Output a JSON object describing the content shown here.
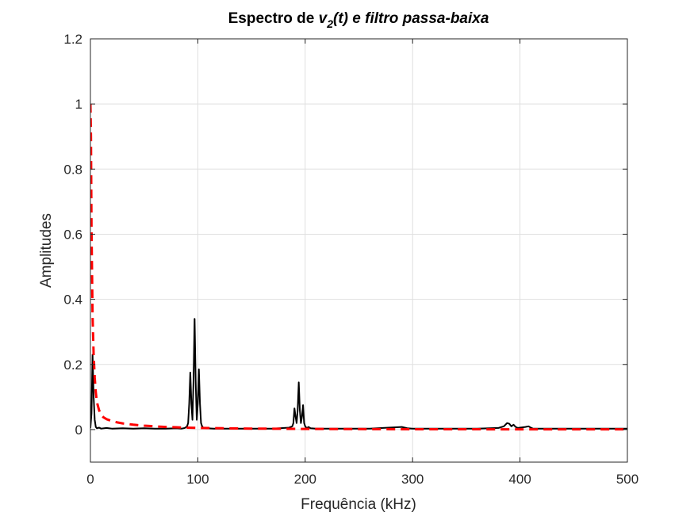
{
  "chart_data": {
    "type": "line",
    "title": {
      "prefix": "Espectro de ",
      "var": "v",
      "sub": "2",
      "rest": "(t) e filtro passa-baixa"
    },
    "xlabel": "Frequência (kHz)",
    "ylabel": "Amplitudes",
    "xlim": [
      0,
      500
    ],
    "ylim": [
      -0.1,
      1.2
    ],
    "xticks": [
      0,
      100,
      200,
      300,
      400,
      500
    ],
    "yticks": [
      0,
      0.2,
      0.4,
      0.6,
      0.8,
      1,
      1.2
    ],
    "ytick_labels": [
      "0",
      "0.2",
      "0.4",
      "0.6",
      "0.8",
      "1",
      "1.2"
    ],
    "grid": true,
    "series": [
      {
        "color": "#000000",
        "style": "solid",
        "x": [
          0,
          1,
          2,
          3,
          4,
          5,
          6,
          8,
          10,
          15,
          20,
          30,
          40,
          50,
          60,
          70,
          80,
          85,
          88,
          90,
          91,
          92,
          93,
          94,
          95,
          96,
          97,
          98,
          99,
          100,
          101,
          102,
          103,
          104,
          105,
          108,
          115,
          130,
          150,
          170,
          185,
          188,
          189,
          190,
          191,
          192,
          193,
          194,
          195,
          196,
          197,
          198,
          199,
          200,
          201,
          202,
          203,
          205,
          210,
          230,
          260,
          290,
          295,
          300,
          330,
          360,
          380,
          385,
          388,
          390,
          392,
          394,
          396,
          398,
          400,
          405,
          408,
          410,
          412,
          415,
          420,
          450,
          480,
          500
        ],
        "y": [
          0.005,
          0.05,
          0.23,
          0.1,
          0.03,
          0.008,
          0.004,
          0.006,
          0.003,
          0.005,
          0.003,
          0.004,
          0.003,
          0.004,
          0.003,
          0.003,
          0.004,
          0.003,
          0.005,
          0.01,
          0.02,
          0.08,
          0.175,
          0.08,
          0.03,
          0.15,
          0.34,
          0.15,
          0.03,
          0.08,
          0.185,
          0.08,
          0.02,
          0.01,
          0.006,
          0.004,
          0.003,
          0.003,
          0.003,
          0.003,
          0.006,
          0.01,
          0.02,
          0.065,
          0.04,
          0.02,
          0.06,
          0.145,
          0.06,
          0.02,
          0.04,
          0.075,
          0.02,
          0.01,
          0.006,
          0.005,
          0.008,
          0.004,
          0.003,
          0.003,
          0.003,
          0.008,
          0.004,
          0.003,
          0.003,
          0.003,
          0.005,
          0.01,
          0.02,
          0.018,
          0.01,
          0.015,
          0.008,
          0.005,
          0.006,
          0.008,
          0.01,
          0.006,
          0.003,
          0.003,
          0.003,
          0.003,
          0.003,
          0.003
        ]
      },
      {
        "color": "#ff0000",
        "style": "dashed",
        "x": [
          0,
          0.5,
          1,
          2,
          3,
          4,
          5,
          6,
          8,
          10,
          12,
          15,
          20,
          25,
          30,
          40,
          50,
          60,
          70,
          80,
          100,
          150,
          200,
          300,
          400,
          500
        ],
        "y": [
          1,
          0.9,
          0.62,
          0.35,
          0.23,
          0.16,
          0.115,
          0.085,
          0.06,
          0.045,
          0.038,
          0.032,
          0.026,
          0.022,
          0.019,
          0.015,
          0.012,
          0.01,
          0.008,
          0.007,
          0.005,
          0.003,
          0.002,
          0.001,
          0.0008,
          0.0006
        ]
      }
    ]
  }
}
